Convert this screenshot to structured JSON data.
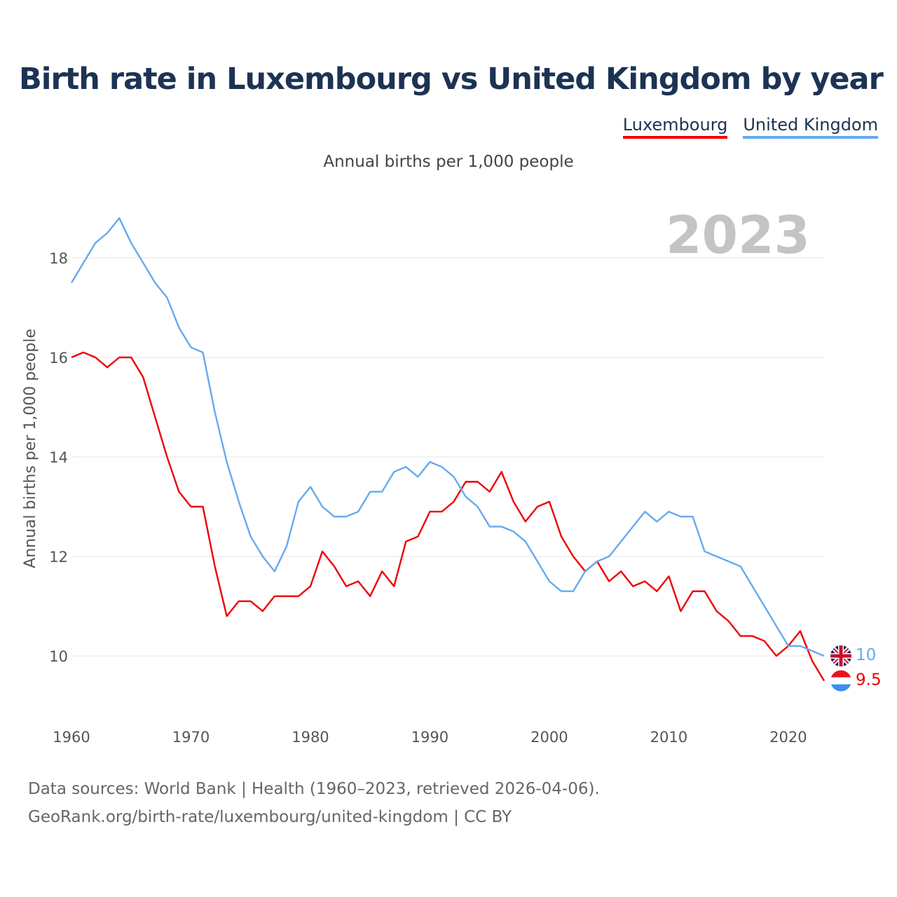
{
  "title": "Birth rate in Luxembourg vs United Kingdom by year",
  "subtitle": "Annual births per 1,000 people",
  "legend": [
    {
      "label": "Luxembourg",
      "color": "#ee0000"
    },
    {
      "label": "United Kingdom",
      "color": "#66aaee"
    }
  ],
  "year_watermark": "2023",
  "footer": {
    "line1": "Data sources: World Bank | Health (1960–2023, retrieved 2026-04-06).",
    "line2": "GeoRank.org/birth-rate/luxembourg/united-kingdom | CC BY"
  },
  "chart_data": {
    "type": "line",
    "title": "Birth rate in Luxembourg vs United Kingdom by year",
    "xlabel": "",
    "ylabel": "Annual births per 1,000 people",
    "xlim": [
      1960,
      2023
    ],
    "ylim": [
      9,
      19
    ],
    "x_ticks": [
      1960,
      1970,
      1980,
      1990,
      2000,
      2010,
      2020
    ],
    "y_ticks": [
      10,
      12,
      14,
      16,
      18
    ],
    "grid": true,
    "legend_position": "top-right",
    "x": [
      1960,
      1961,
      1962,
      1963,
      1964,
      1965,
      1966,
      1967,
      1968,
      1969,
      1970,
      1971,
      1972,
      1973,
      1974,
      1975,
      1976,
      1977,
      1978,
      1979,
      1980,
      1981,
      1982,
      1983,
      1984,
      1985,
      1986,
      1987,
      1988,
      1989,
      1990,
      1991,
      1992,
      1993,
      1994,
      1995,
      1996,
      1997,
      1998,
      1999,
      2000,
      2001,
      2002,
      2003,
      2004,
      2005,
      2006,
      2007,
      2008,
      2009,
      2010,
      2011,
      2012,
      2013,
      2014,
      2015,
      2016,
      2017,
      2018,
      2019,
      2020,
      2021,
      2022,
      2023
    ],
    "series": [
      {
        "name": "Luxembourg",
        "color": "#ee0000",
        "end_label": "9.5",
        "values": [
          16.0,
          16.1,
          16.0,
          15.8,
          16.0,
          16.0,
          15.6,
          14.8,
          14.0,
          13.3,
          13.0,
          13.0,
          11.8,
          10.8,
          11.1,
          11.1,
          10.9,
          11.2,
          11.2,
          11.2,
          11.4,
          12.1,
          11.8,
          11.4,
          11.5,
          11.2,
          11.7,
          11.4,
          12.3,
          12.4,
          12.9,
          12.9,
          13.1,
          13.5,
          13.5,
          13.3,
          13.7,
          13.1,
          12.7,
          13.0,
          13.1,
          12.4,
          12.0,
          11.7,
          11.9,
          11.5,
          11.7,
          11.4,
          11.5,
          11.3,
          11.6,
          10.9,
          11.3,
          11.3,
          10.9,
          10.7,
          10.4,
          10.4,
          10.3,
          10.0,
          10.2,
          10.5,
          9.9,
          9.5
        ]
      },
      {
        "name": "United Kingdom",
        "color": "#66aaee",
        "end_label": "10",
        "values": [
          17.5,
          17.9,
          18.3,
          18.5,
          18.8,
          18.3,
          17.9,
          17.5,
          17.2,
          16.6,
          16.2,
          16.1,
          14.9,
          13.9,
          13.1,
          12.4,
          12.0,
          11.7,
          12.2,
          13.1,
          13.4,
          13.0,
          12.8,
          12.8,
          12.9,
          13.3,
          13.3,
          13.7,
          13.8,
          13.6,
          13.9,
          13.8,
          13.6,
          13.2,
          13.0,
          12.6,
          12.6,
          12.5,
          12.3,
          11.9,
          11.5,
          11.3,
          11.3,
          11.7,
          11.9,
          12.0,
          12.3,
          12.6,
          12.9,
          12.7,
          12.9,
          12.8,
          12.8,
          12.1,
          12.0,
          11.9,
          11.8,
          11.4,
          11.0,
          10.6,
          10.2,
          10.2,
          10.1,
          10.0
        ]
      }
    ]
  }
}
